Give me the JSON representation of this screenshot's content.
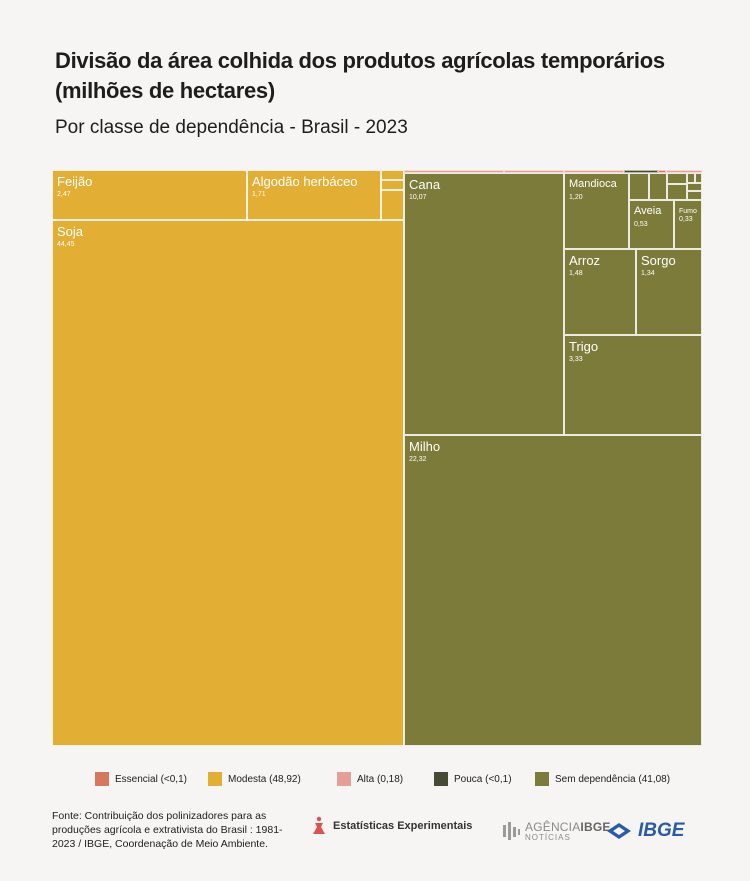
{
  "header": {
    "title": "Divisão da área colhida dos produtos agrícolas temporários (milhões de hectares)",
    "subtitle": "Por classe de dependência - Brasil - 2023"
  },
  "colors": {
    "essencial": "#d6785e",
    "modesta": "#e2ae33",
    "alta": "#e4a098",
    "pouca": "#464b34",
    "sem_dependencia": "#7c7b39"
  },
  "chart_data": {
    "type": "treemap",
    "title": "Divisão da área colhida dos produtos agrícolas temporários (milhões de hectares)",
    "subtitle": "Por classe de dependência - Brasil - 2023",
    "unit": "milhões de hectares",
    "items": [
      {
        "name": "Feijão",
        "value": 2.47,
        "value_label": "2,47",
        "class": "modesta"
      },
      {
        "name": "Algodão herbáceo",
        "value": 1.71,
        "value_label": "1,71",
        "class": "modesta"
      },
      {
        "name": "",
        "value": null,
        "value_label": "",
        "class": "modesta"
      },
      {
        "name": "",
        "value": null,
        "value_label": "",
        "class": "modesta"
      },
      {
        "name": "",
        "value": null,
        "value_label": "",
        "class": "modesta"
      },
      {
        "name": "Soja",
        "value": 44.45,
        "value_label": "44,45",
        "class": "modesta"
      },
      {
        "name": "Cana",
        "value": 10.07,
        "value_label": "10,07",
        "class": "sem_dependencia"
      },
      {
        "name": "Mandioca",
        "value": 1.2,
        "value_label": "1,20",
        "class": "sem_dependencia"
      },
      {
        "name": "Aveia",
        "value": 0.53,
        "value_label": "0,53",
        "class": "sem_dependencia"
      },
      {
        "name": "Fumo",
        "value": 0.33,
        "value_label": "0,33",
        "class": "sem_dependencia"
      },
      {
        "name": "Arroz",
        "value": 1.48,
        "value_label": "1,48",
        "class": "sem_dependencia"
      },
      {
        "name": "Sorgo",
        "value": 1.34,
        "value_label": "1,34",
        "class": "sem_dependencia"
      },
      {
        "name": "Trigo",
        "value": 3.33,
        "value_label": "3,33",
        "class": "sem_dependencia"
      },
      {
        "name": "Milho",
        "value": 22.32,
        "value_label": "22,32",
        "class": "sem_dependencia"
      },
      {
        "name": "",
        "value": null,
        "value_label": "",
        "class": "sem_dependencia"
      },
      {
        "name": "",
        "value": null,
        "value_label": "",
        "class": "sem_dependencia"
      },
      {
        "name": "",
        "value": null,
        "value_label": "",
        "class": "sem_dependencia"
      },
      {
        "name": "",
        "value": null,
        "value_label": "",
        "class": "sem_dependencia"
      },
      {
        "name": "",
        "value": null,
        "value_label": "",
        "class": "sem_dependencia"
      },
      {
        "name": "",
        "value": null,
        "value_label": "",
        "class": "sem_dependencia"
      },
      {
        "name": "",
        "value": null,
        "value_label": "",
        "class": "sem_dependencia"
      },
      {
        "name": "",
        "value": null,
        "value_label": "",
        "class": "sem_dependencia"
      },
      {
        "name": "",
        "value": null,
        "value_label": "",
        "class": "alta"
      },
      {
        "name": "",
        "value": null,
        "value_label": "",
        "class": "alta"
      },
      {
        "name": "",
        "value": null,
        "value_label": "",
        "class": "alta"
      },
      {
        "name": "",
        "value": null,
        "value_label": "",
        "class": "alta"
      },
      {
        "name": "",
        "value": null,
        "value_label": "",
        "class": "pouca"
      },
      {
        "name": "",
        "value": null,
        "value_label": "",
        "class": "essencial"
      }
    ],
    "legend_position": "bottom"
  },
  "legend": [
    {
      "key": "essencial",
      "label": "Essencial (<0,1)"
    },
    {
      "key": "modesta",
      "label": "Modesta (48,92)"
    },
    {
      "key": "alta",
      "label": "Alta (0,18)"
    },
    {
      "key": "pouca",
      "label": "Pouca (<0,1)"
    },
    {
      "key": "sem_dependencia",
      "label": "Sem dependência (41,08)"
    }
  ],
  "footer": {
    "source": "Fonte: Contribuição dos polinizadores para as produções agrícola e extrativista do Brasil : 1981-2023 / IBGE, Coordenação de Meio Ambiente.",
    "experimental": "Estatísticas Experimentais",
    "agencia_line1_a": "AGÊNCIA",
    "agencia_line1_b": "IBGE",
    "agencia_line2": "NOTÍCIAS",
    "ibge": "IBGE"
  }
}
